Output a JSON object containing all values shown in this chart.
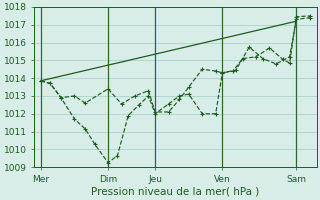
{
  "title": "",
  "xlabel": "Pression niveau de la mer( hPa )",
  "ylabel": "",
  "ylim": [
    1009,
    1018
  ],
  "xlim": [
    0,
    21
  ],
  "background_color": "#cce8e0",
  "grid_color": "#b0d8d0",
  "plot_bg": "#d8ede8",
  "line_color": "#1e5c1e",
  "vline_color": "#2d6a2d",
  "xtick_labels": [
    "Mer",
    "Dim",
    "Jeu",
    "Ven",
    "Sam"
  ],
  "xtick_positions": [
    0.5,
    5.5,
    9.0,
    14.0,
    19.5
  ],
  "vline_positions": [
    0.5,
    5.5,
    9.0,
    14.0,
    19.5
  ],
  "series_trend": {
    "x": [
      0.5,
      19.5
    ],
    "y": [
      1013.85,
      1017.2
    ]
  },
  "series_deep": {
    "x": [
      0.5,
      1.2,
      2.0,
      3.0,
      3.8,
      4.5,
      5.5,
      6.2,
      7.0,
      7.8,
      8.5,
      9.0,
      10.0,
      10.8,
      11.5,
      12.5,
      13.5,
      14.0,
      15.0,
      16.0,
      17.0,
      18.0,
      19.0,
      19.5,
      20.5
    ],
    "y": [
      1013.85,
      1013.7,
      1012.9,
      1011.7,
      1011.15,
      1010.3,
      1009.25,
      1009.65,
      1011.9,
      1012.5,
      1013.0,
      1012.0,
      1012.55,
      1013.0,
      1013.1,
      1012.0,
      1012.0,
      1014.3,
      1014.45,
      1015.75,
      1015.1,
      1014.8,
      1015.2,
      1017.3,
      1017.4
    ]
  },
  "series_mid": {
    "x": [
      0.5,
      1.2,
      2.0,
      3.0,
      3.8,
      5.5,
      6.5,
      7.5,
      8.5,
      9.0,
      10.0,
      10.8,
      11.5,
      12.5,
      13.5,
      14.0,
      14.8,
      15.5,
      16.5,
      17.5,
      18.5,
      19.0,
      19.5,
      20.5
    ],
    "y": [
      1013.85,
      1013.7,
      1012.9,
      1013.0,
      1012.6,
      1013.4,
      1012.55,
      1013.0,
      1013.3,
      1012.1,
      1012.1,
      1012.8,
      1013.5,
      1014.5,
      1014.4,
      1014.3,
      1014.4,
      1015.1,
      1015.2,
      1015.7,
      1015.05,
      1014.85,
      1017.45,
      1017.5
    ]
  },
  "tick_fontsize": 6.5,
  "label_fontsize": 7.5
}
